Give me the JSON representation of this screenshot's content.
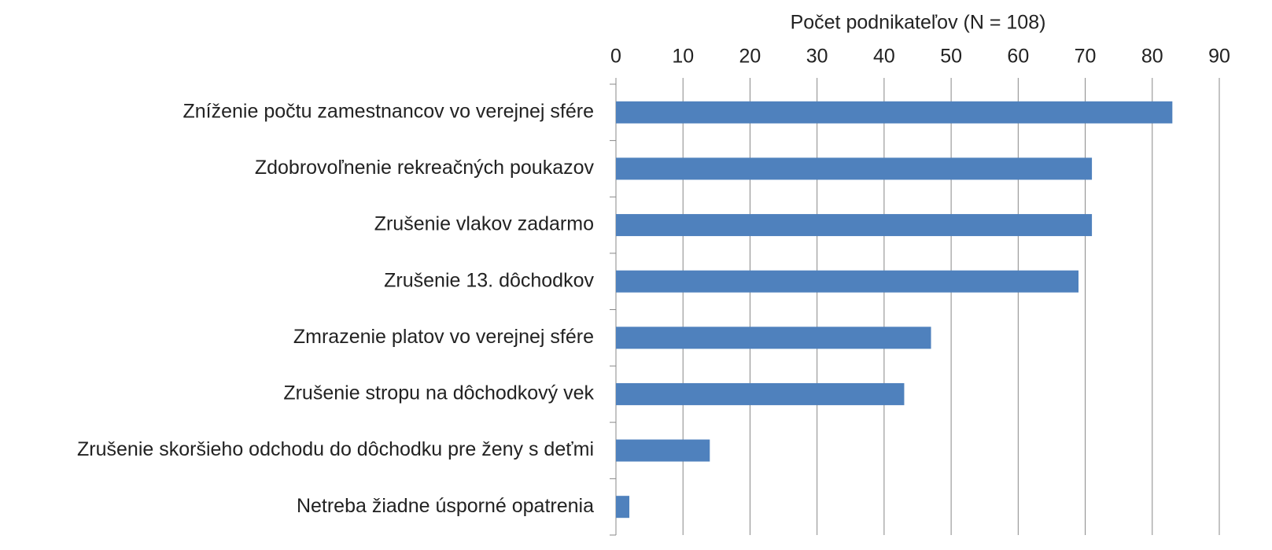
{
  "chart_data": {
    "type": "bar",
    "orientation": "horizontal",
    "xlabel": "Počet podnikateľov (N = 108)",
    "categories": [
      "Zníženie počtu zamestnancov vo verejnej sfére",
      "Zdobrovoľnenie rekreačných poukazov",
      "Zrušenie vlakov zadarmo",
      "Zrušenie 13. dôchodkov",
      "Zmrazenie platov vo verejnej sfére",
      "Zrušenie stropu na dôchodkový vek",
      "Zrušenie skoršieho odchodu do dôchodku pre ženy s deťmi",
      "Netreba žiadne úsporné opatrenia"
    ],
    "values": [
      83,
      71,
      71,
      69,
      47,
      43,
      14,
      2
    ],
    "color": "#4f81bd",
    "xlim": [
      0,
      90
    ],
    "xticks": [
      0,
      10,
      20,
      30,
      40,
      50,
      60,
      70,
      80,
      90
    ],
    "grid": true
  }
}
